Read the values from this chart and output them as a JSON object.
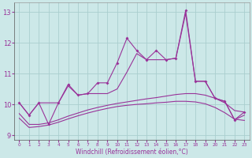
{
  "xlabel": "Windchill (Refroidissement éolien,°C)",
  "background_color": "#cce8e8",
  "grid_color": "#aacece",
  "line_color": "#993399",
  "x": [
    0,
    1,
    2,
    3,
    4,
    5,
    6,
    7,
    8,
    9,
    10,
    11,
    12,
    13,
    14,
    15,
    16,
    17,
    18,
    19,
    20,
    21,
    22,
    23
  ],
  "y_spiky": [
    10.05,
    9.65,
    10.05,
    9.35,
    10.05,
    10.65,
    10.3,
    10.35,
    10.7,
    10.7,
    11.35,
    12.15,
    11.75,
    11.45,
    11.75,
    11.45,
    11.5,
    13.05,
    10.75,
    10.75,
    10.2,
    10.1,
    9.5,
    9.75
  ],
  "y_upper": [
    10.05,
    9.65,
    10.05,
    10.05,
    10.05,
    10.6,
    10.3,
    10.35,
    10.35,
    10.35,
    10.5,
    11.05,
    11.65,
    11.45,
    11.45,
    11.45,
    11.5,
    12.95,
    10.75,
    10.75,
    10.2,
    10.1,
    9.5,
    9.65
  ],
  "y_mid": [
    9.7,
    9.35,
    9.35,
    9.4,
    9.5,
    9.62,
    9.72,
    9.82,
    9.9,
    9.97,
    10.03,
    10.08,
    10.13,
    10.18,
    10.22,
    10.27,
    10.32,
    10.35,
    10.35,
    10.3,
    10.2,
    10.05,
    9.8,
    9.75
  ],
  "y_lower": [
    9.55,
    9.25,
    9.28,
    9.33,
    9.42,
    9.53,
    9.63,
    9.72,
    9.8,
    9.87,
    9.93,
    9.97,
    10.0,
    10.02,
    10.05,
    10.07,
    10.1,
    10.1,
    10.08,
    10.02,
    9.9,
    9.73,
    9.52,
    9.48
  ],
  "ylim": [
    8.85,
    13.3
  ],
  "yticks": [
    9,
    10,
    11,
    12,
    13
  ],
  "xlim": [
    -0.5,
    23.5
  ],
  "figsize": [
    3.2,
    2.0
  ],
  "dpi": 100
}
